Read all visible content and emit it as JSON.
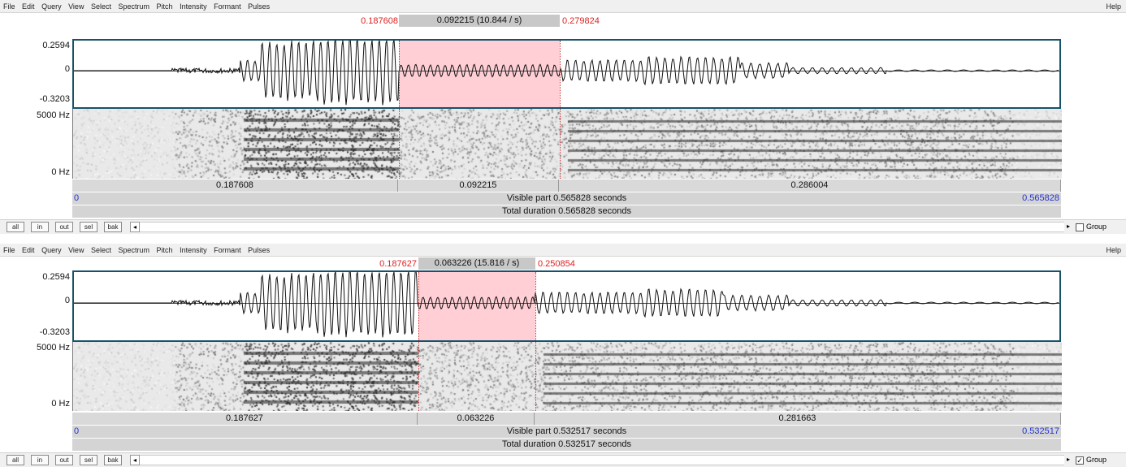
{
  "menu": [
    "File",
    "Edit",
    "Query",
    "View",
    "Select",
    "Spectrum",
    "Pitch",
    "Intensity",
    "Formant",
    "Pulses"
  ],
  "help": "Help",
  "buttons": {
    "all": "all",
    "in": "in",
    "out": "out",
    "sel": "sel",
    "bak": "bak"
  },
  "glyphs": {
    "scroll_left": "◂",
    "scroll_right": "▸",
    "checked": "✓"
  },
  "panels": [
    {
      "sel_start": "0.187608",
      "sel_length": "0.092215 (10.844 / s)",
      "sel_end": "0.279824",
      "amp_max": "0.2594",
      "amp_zero": "0",
      "amp_min": "-0.3203",
      "freq_max": "5000 Hz",
      "freq_min": "0 Hz",
      "durations": [
        "0.187608",
        "0.092215",
        "0.286004"
      ],
      "visible_start": "0",
      "visible_part": "Visible part 0.565828 seconds",
      "visible_end": "0.565828",
      "total_duration": "Total duration 0.565828 seconds",
      "group_label": "Group",
      "group_checked": false
    },
    {
      "sel_start": "0.187627",
      "sel_length": "0.063226 (15.816 / s)",
      "sel_end": "0.250854",
      "amp_max": "0.2594",
      "amp_zero": "0",
      "amp_min": "-0.3203",
      "freq_max": "5000 Hz",
      "freq_min": "0 Hz",
      "durations": [
        "0.187627",
        "0.063226",
        "0.281663"
      ],
      "visible_start": "0",
      "visible_part": "Visible part 0.532517 seconds",
      "visible_end": "0.532517",
      "total_duration": "Total duration 0.532517 seconds",
      "group_label": "Group",
      "group_checked": true
    }
  ],
  "colors": {
    "selection": "#ffcfd5",
    "selection_time": "#dd2222",
    "visible_range": "#2233cc",
    "wave_frame": "#17526b"
  }
}
